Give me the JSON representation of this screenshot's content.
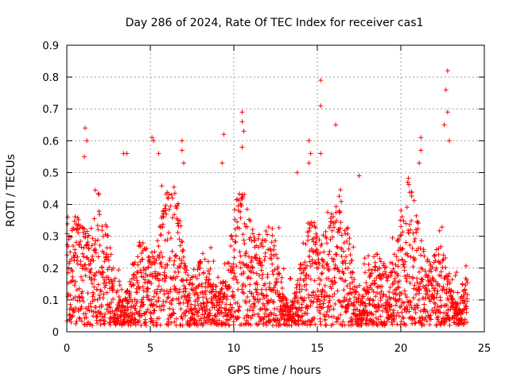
{
  "chart_data": {
    "type": "scatter",
    "title": "Day 286 of 2024, Rate Of TEC Index for receiver cas1",
    "xlabel": "GPS time / hours",
    "ylabel": "ROTI / TECUs",
    "xlim": [
      0,
      25
    ],
    "ylim": [
      0,
      0.9
    ],
    "xticks": [
      0,
      5,
      10,
      15,
      20,
      25
    ],
    "yticks": [
      0,
      0.1,
      0.2,
      0.3,
      0.4,
      0.5,
      0.6,
      0.7,
      0.8,
      0.9
    ],
    "xtick_labels": [
      "0",
      "5",
      "10",
      "15",
      "20",
      "25"
    ],
    "ytick_labels": [
      "0",
      "0.1",
      "0.2",
      "0.3",
      "0.4",
      "0.5",
      "0.6",
      "0.7",
      "0.8",
      "0.9"
    ],
    "grid": true,
    "marker": "+",
    "color": "#ff0000",
    "notable_points": [
      {
        "x": 1.1,
        "y": 0.64
      },
      {
        "x": 1.2,
        "y": 0.6
      },
      {
        "x": 1.05,
        "y": 0.55
      },
      {
        "x": 3.4,
        "y": 0.56
      },
      {
        "x": 3.6,
        "y": 0.56
      },
      {
        "x": 5.1,
        "y": 0.61
      },
      {
        "x": 5.2,
        "y": 0.6
      },
      {
        "x": 5.5,
        "y": 0.56
      },
      {
        "x": 6.9,
        "y": 0.6
      },
      {
        "x": 6.9,
        "y": 0.57
      },
      {
        "x": 7.0,
        "y": 0.53
      },
      {
        "x": 9.4,
        "y": 0.62
      },
      {
        "x": 9.3,
        "y": 0.53
      },
      {
        "x": 10.5,
        "y": 0.69
      },
      {
        "x": 10.5,
        "y": 0.66
      },
      {
        "x": 10.6,
        "y": 0.63
      },
      {
        "x": 10.5,
        "y": 0.58
      },
      {
        "x": 13.8,
        "y": 0.5
      },
      {
        "x": 14.5,
        "y": 0.6
      },
      {
        "x": 14.6,
        "y": 0.56
      },
      {
        "x": 14.5,
        "y": 0.53
      },
      {
        "x": 15.2,
        "y": 0.79
      },
      {
        "x": 15.2,
        "y": 0.71
      },
      {
        "x": 15.2,
        "y": 0.56
      },
      {
        "x": 16.1,
        "y": 0.65
      },
      {
        "x": 17.5,
        "y": 0.49
      },
      {
        "x": 21.2,
        "y": 0.61
      },
      {
        "x": 21.2,
        "y": 0.57
      },
      {
        "x": 21.1,
        "y": 0.53
      },
      {
        "x": 22.8,
        "y": 0.82
      },
      {
        "x": 22.7,
        "y": 0.76
      },
      {
        "x": 22.8,
        "y": 0.69
      },
      {
        "x": 22.6,
        "y": 0.65
      },
      {
        "x": 22.9,
        "y": 0.6
      }
    ]
  }
}
